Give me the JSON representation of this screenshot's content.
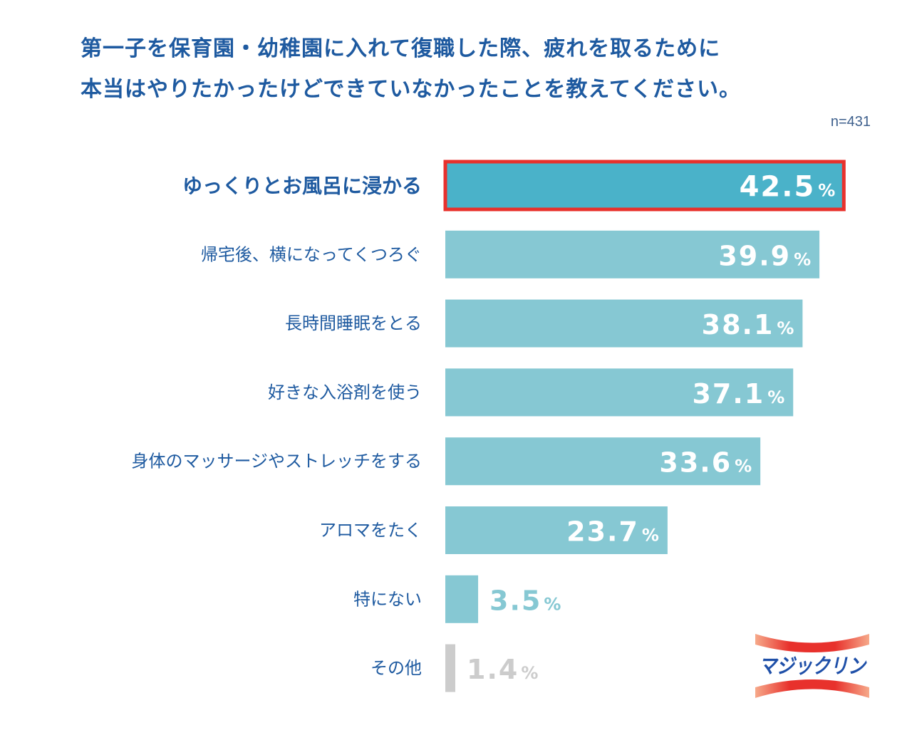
{
  "title_lines": [
    "第一子を保育園・幼稚園に入れて復職した際、疲れを取るために",
    "本当はやりたかったけどできていなかったことを教えてください。"
  ],
  "sample_size": "n=431",
  "logo_text": "マジックリン",
  "chart_data": {
    "type": "bar",
    "orientation": "horizontal",
    "categories": [
      "ゆっくりとお風呂に浸かる",
      "帰宅後、横になってくつろぐ",
      "長時間睡眠をとる",
      "好きな入浴剤を使う",
      "身体のマッサージやストレッチをする",
      "アロマをたく",
      "特にない",
      "その他"
    ],
    "values": [
      42.5,
      39.9,
      38.1,
      37.1,
      33.6,
      23.7,
      3.5,
      1.4
    ],
    "value_labels": [
      "42.5",
      "39.9",
      "38.1",
      "37.1",
      "33.6",
      "23.7",
      "3.5",
      "1.4"
    ],
    "unit": "%",
    "highlighted_index": 0,
    "grid": false,
    "colors": {
      "highlight": "#4ab2c9",
      "highlight_border": "#e8312c",
      "bar": "#86c8d3",
      "other": "#cccccc",
      "label": "#1e5aa0",
      "value_outside": "#86c8d3",
      "value_other": "#cccccc"
    }
  }
}
